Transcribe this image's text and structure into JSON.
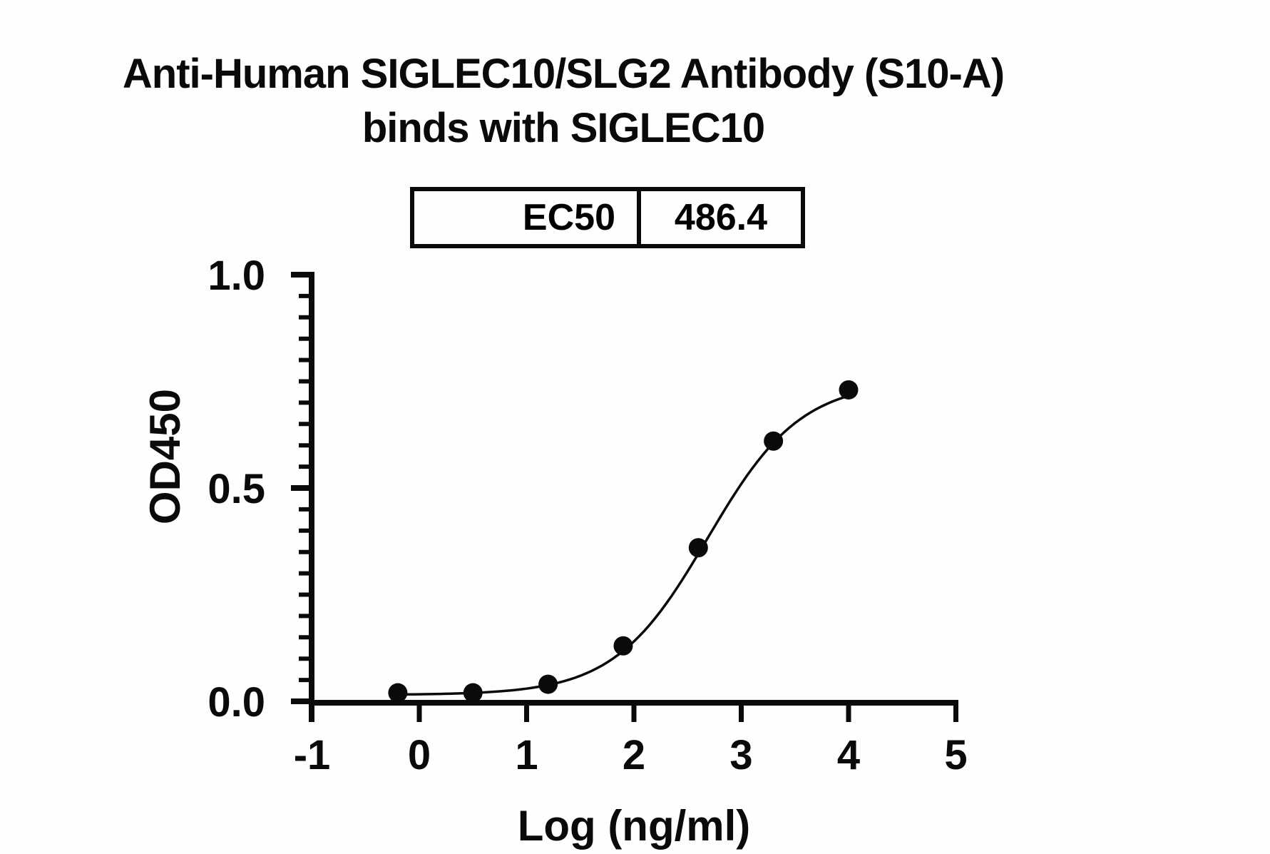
{
  "title": {
    "line1": "Anti-Human SIGLEC10/SLG2 Antibody (S10-A)",
    "line2": "binds with SIGLEC10"
  },
  "ec50_table": {
    "label": "EC50",
    "value": "486.4"
  },
  "chart_data": {
    "type": "scatter",
    "title": "Anti-Human SIGLEC10/SLG2 Antibody (S10-A) binds with SIGLEC10",
    "xlabel": "Log (ng/ml)",
    "ylabel": "OD450",
    "xlim": [
      -1,
      5
    ],
    "ylim": [
      0.0,
      1.0
    ],
    "x_ticks": [
      -1,
      0,
      1,
      2,
      3,
      4,
      5
    ],
    "x_tick_labels": [
      "-1",
      "0",
      "1",
      "2",
      "3",
      "4",
      "5"
    ],
    "y_ticks": [
      0.0,
      0.5,
      1.0
    ],
    "y_tick_labels": [
      "0.0",
      "0.5",
      "1.0"
    ],
    "y_minor_tick_step": 0.05,
    "grid": false,
    "legend": null,
    "marker_color": "#0a0a0a",
    "line_color": "#0a0a0a",
    "points": [
      {
        "x": -0.2,
        "y": 0.02
      },
      {
        "x": 0.5,
        "y": 0.02
      },
      {
        "x": 1.2,
        "y": 0.04
      },
      {
        "x": 1.9,
        "y": 0.13
      },
      {
        "x": 2.6,
        "y": 0.36
      },
      {
        "x": 3.3,
        "y": 0.61
      },
      {
        "x": 4.0,
        "y": 0.73
      }
    ],
    "ec50": 486.4,
    "fit_curve": {
      "model": "4PL",
      "bottom": 0.015,
      "top": 0.75,
      "logEC50": 2.687,
      "hillslope": 1.0,
      "x_start": -0.2,
      "x_end": 4.0
    }
  }
}
